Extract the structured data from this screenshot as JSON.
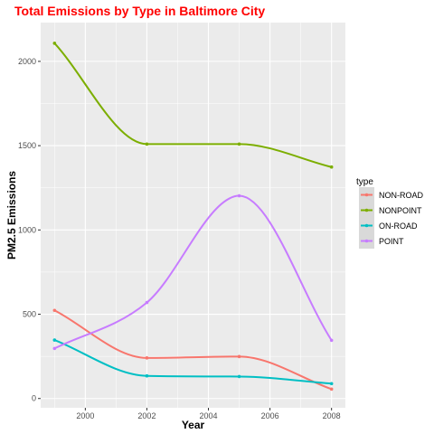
{
  "chart_data": {
    "type": "line",
    "title": "Total Emissions by Type in Baltimore City",
    "xlabel": "Year",
    "ylabel": "PM2.5 Emissions",
    "x": [
      1999,
      2002,
      2005,
      2008
    ],
    "xlim": [
      1998.55,
      2008.45
    ],
    "ylim": [
      -55,
      2230
    ],
    "xticks": [
      2000,
      2002,
      2004,
      2006,
      2008
    ],
    "yticks": [
      0,
      500,
      1000,
      1500,
      2000
    ],
    "grid": true,
    "legend": {
      "title": "type",
      "placement": "right"
    },
    "series": [
      {
        "name": "NON-ROAD",
        "color": "#F8766D",
        "values": [
          522.9,
          240.8,
          248.9,
          55.8
        ]
      },
      {
        "name": "NONPOINT",
        "color": "#7CAE00",
        "values": [
          2107.6,
          1509.5,
          1509.5,
          1373.2
        ]
      },
      {
        "name": "ON-ROAD",
        "color": "#00BFC4",
        "values": [
          346.8,
          134.3,
          130.4,
          88.3
        ]
      },
      {
        "name": "POINT",
        "color": "#C77CFF",
        "values": [
          296.8,
          569.3,
          1202.5,
          344.98
        ]
      }
    ]
  },
  "style": {
    "panel_bg": "#EBEBEB",
    "grid_major": "#FFFFFF",
    "legend_key_bg": "#D9D9D9"
  }
}
